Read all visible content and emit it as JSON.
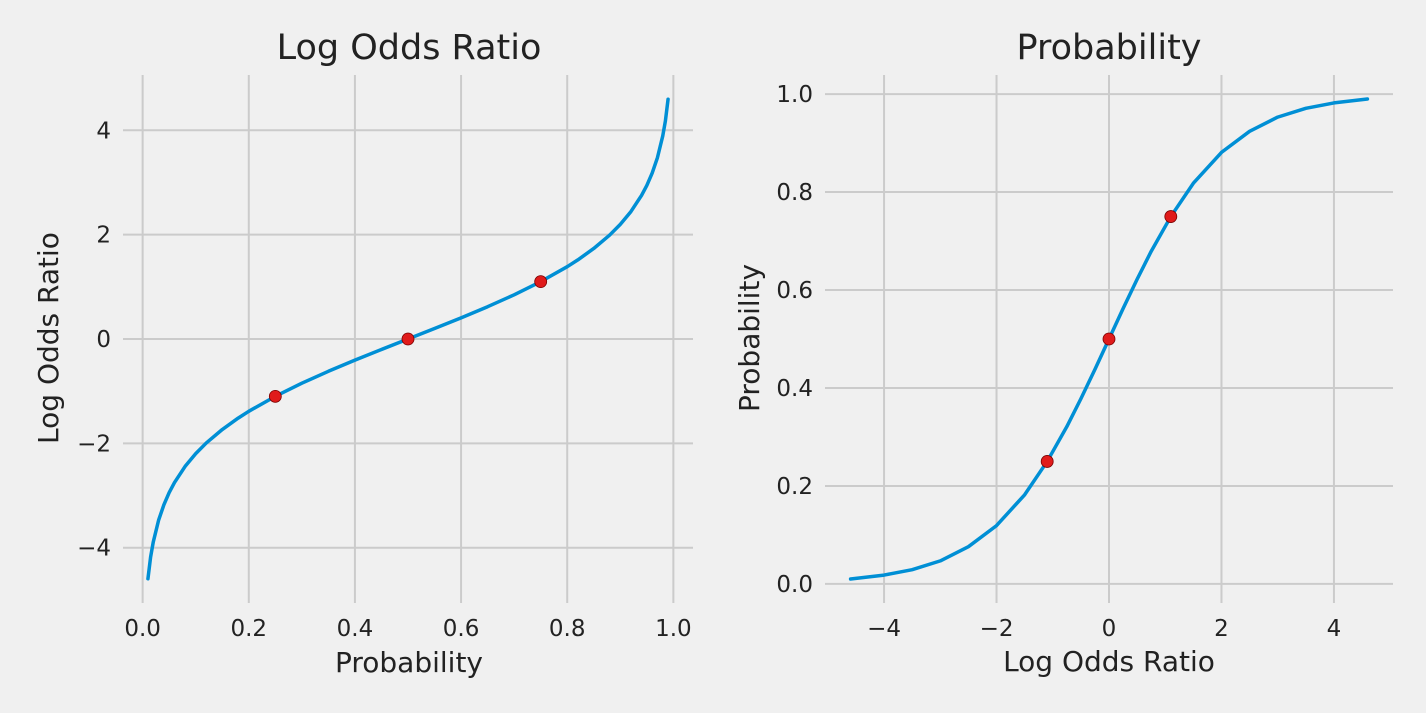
{
  "colors": {
    "background": "#f0f0f0",
    "grid": "#cbcbcb",
    "line": "#008fd5",
    "points": "#e01b1b"
  },
  "chart_data": [
    {
      "type": "line",
      "title": "Log Odds Ratio",
      "xlabel": "Probability",
      "ylabel": "Log Odds Ratio",
      "xlim": [
        -0.037,
        1.037
      ],
      "ylim": [
        -5.06,
        5.06
      ],
      "xticks": [
        0.0,
        0.2,
        0.4,
        0.6,
        0.8,
        1.0
      ],
      "xtick_labels": [
        "0.0",
        "0.2",
        "0.4",
        "0.6",
        "0.8",
        "1.0"
      ],
      "yticks": [
        -4,
        -2,
        0,
        2,
        4
      ],
      "ytick_labels": [
        "−4",
        "−2",
        "0",
        "2",
        "4"
      ],
      "grid": true,
      "series": [
        {
          "kind": "line",
          "x": [
            0.01,
            0.015,
            0.02,
            0.03,
            0.04,
            0.05,
            0.06,
            0.08,
            0.1,
            0.12,
            0.15,
            0.18,
            0.2,
            0.25,
            0.3,
            0.35,
            0.4,
            0.45,
            0.5,
            0.55,
            0.6,
            0.65,
            0.7,
            0.75,
            0.8,
            0.82,
            0.85,
            0.88,
            0.9,
            0.92,
            0.94,
            0.95,
            0.96,
            0.97,
            0.98,
            0.985,
            0.99
          ],
          "y": [
            -4.595,
            -4.18,
            -3.892,
            -3.476,
            -3.178,
            -2.944,
            -2.752,
            -2.442,
            -2.197,
            -1.992,
            -1.735,
            -1.516,
            -1.386,
            -1.099,
            -0.847,
            -0.619,
            -0.405,
            -0.201,
            0.0,
            0.201,
            0.405,
            0.619,
            0.847,
            1.099,
            1.386,
            1.516,
            1.735,
            1.992,
            2.197,
            2.442,
            2.752,
            2.944,
            3.178,
            3.476,
            3.892,
            4.18,
            4.595
          ]
        },
        {
          "kind": "scatter",
          "x": [
            0.25,
            0.5,
            0.75
          ],
          "y": [
            -1.099,
            0.0,
            1.099
          ]
        }
      ]
    },
    {
      "type": "line",
      "title": "Probability",
      "xlabel": "Log Odds Ratio",
      "ylabel": "Probability",
      "xlim": [
        -5.05,
        5.05
      ],
      "ylim": [
        -0.039,
        1.039
      ],
      "xticks": [
        -4,
        -2,
        0,
        2,
        4
      ],
      "xtick_labels": [
        "−4",
        "−2",
        "0",
        "2",
        "4"
      ],
      "yticks": [
        0.0,
        0.2,
        0.4,
        0.6,
        0.8,
        1.0
      ],
      "ytick_labels": [
        "0.0",
        "0.2",
        "0.4",
        "0.6",
        "0.8",
        "1.0"
      ],
      "grid": true,
      "series": [
        {
          "kind": "line",
          "x": [
            -4.595,
            -4.0,
            -3.5,
            -3.0,
            -2.5,
            -2.0,
            -1.5,
            -1.099,
            -0.75,
            -0.5,
            -0.25,
            0.0,
            0.25,
            0.5,
            0.75,
            1.099,
            1.5,
            2.0,
            2.5,
            3.0,
            3.5,
            4.0,
            4.595
          ],
          "y": [
            0.01,
            0.018,
            0.029,
            0.047,
            0.076,
            0.119,
            0.182,
            0.25,
            0.321,
            0.378,
            0.438,
            0.5,
            0.562,
            0.622,
            0.679,
            0.75,
            0.818,
            0.881,
            0.924,
            0.953,
            0.971,
            0.982,
            0.99
          ]
        },
        {
          "kind": "scatter",
          "x": [
            -1.099,
            0.0,
            1.099
          ],
          "y": [
            0.25,
            0.5,
            0.75
          ]
        }
      ]
    }
  ]
}
